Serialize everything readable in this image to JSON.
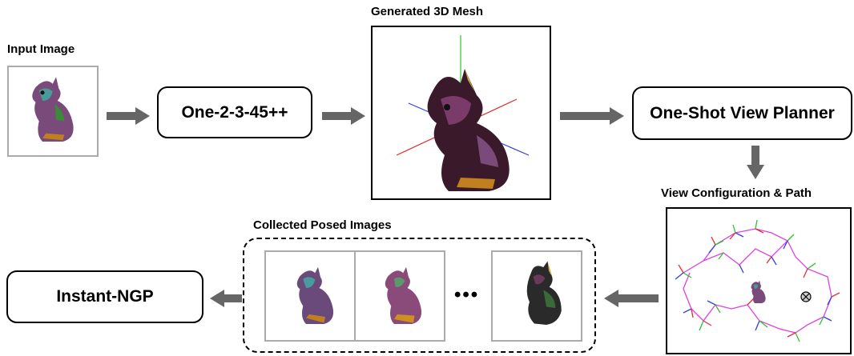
{
  "labels": {
    "input_image": "Input Image",
    "generated_mesh": "Generated 3D Mesh",
    "view_config": "View Configuration & Path",
    "collected_images": "Collected Posed Images"
  },
  "boxes": {
    "one2345": "One-2-3-45++",
    "view_planner": "One-Shot View Planner",
    "instant_ngp": "Instant-NGP"
  },
  "ellipsis": "•••",
  "colors": {
    "arrow": "#666666",
    "path": "#e040e0",
    "cam_red": "#e03030",
    "cam_green": "#30c030",
    "cam_blue": "#3040e0",
    "frame_gray": "#aaaaaa"
  }
}
